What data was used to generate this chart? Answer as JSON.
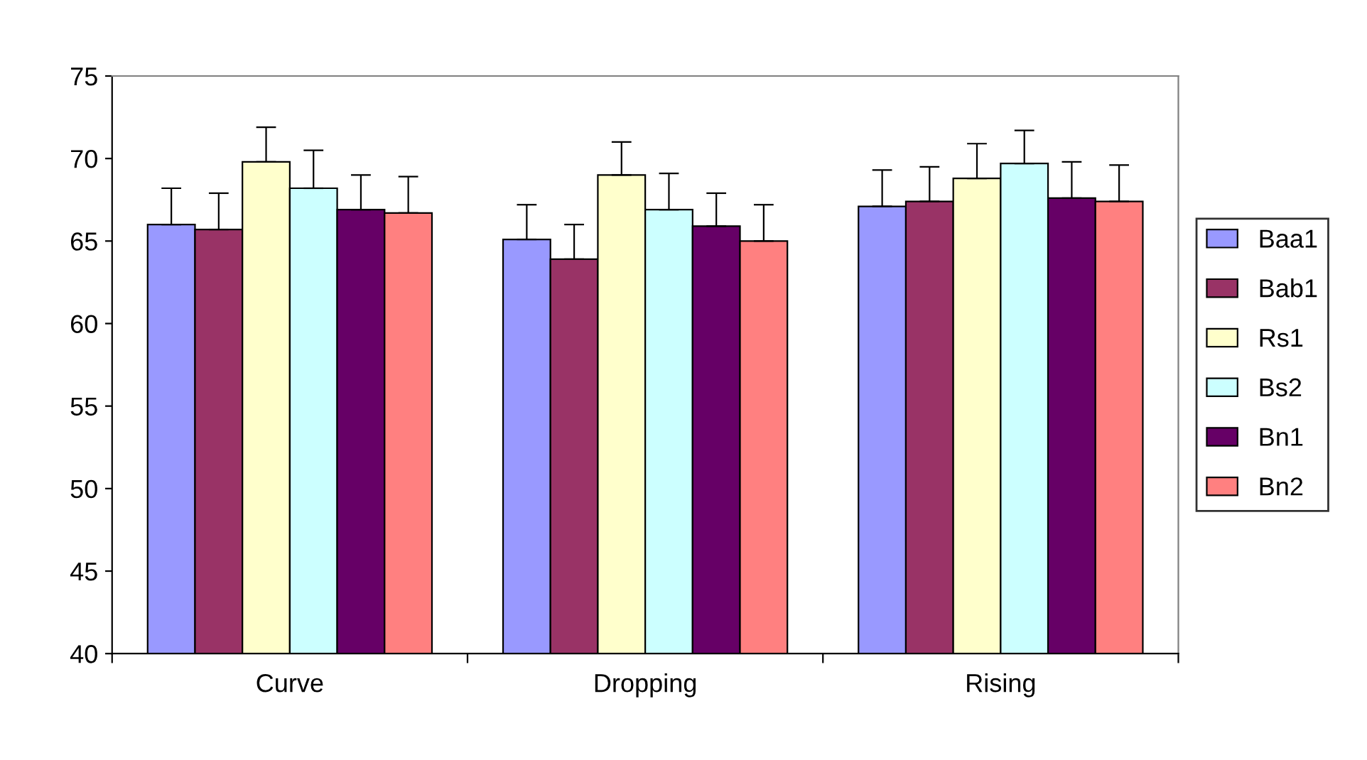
{
  "chart_data": {
    "type": "bar",
    "categories": [
      "Curve",
      "Dropping",
      "Rising"
    ],
    "series": [
      {
        "name": "Baa1",
        "color": "#9999ff",
        "values": [
          66.0,
          65.1,
          67.1
        ],
        "errors": [
          [
            66.0,
            68.2
          ],
          [
            65.1,
            67.2
          ],
          [
            67.1,
            69.3
          ]
        ]
      },
      {
        "name": "Bab1",
        "color": "#993366",
        "values": [
          65.7,
          63.9,
          67.4
        ],
        "errors": [
          [
            65.7,
            67.9
          ],
          [
            63.9,
            66.0
          ],
          [
            67.4,
            69.5
          ]
        ]
      },
      {
        "name": "Rs1",
        "color": "#ffffcc",
        "values": [
          69.8,
          69.0,
          68.8
        ],
        "errors": [
          [
            69.8,
            71.9
          ],
          [
            69.0,
            71.0
          ],
          [
            68.8,
            70.9
          ]
        ]
      },
      {
        "name": "Bs2",
        "color": "#ccffff",
        "values": [
          68.2,
          66.9,
          69.7
        ],
        "errors": [
          [
            68.2,
            70.5
          ],
          [
            66.9,
            69.1
          ],
          [
            69.7,
            71.7
          ]
        ]
      },
      {
        "name": "Bn1",
        "color": "#660066",
        "values": [
          66.9,
          65.9,
          67.6
        ],
        "errors": [
          [
            66.9,
            69.0
          ],
          [
            65.9,
            67.9
          ],
          [
            67.6,
            69.8
          ]
        ]
      },
      {
        "name": "Bn2",
        "color": "#ff8080",
        "values": [
          66.7,
          65.0,
          67.4
        ],
        "errors": [
          [
            66.7,
            68.9
          ],
          [
            65.0,
            67.2
          ],
          [
            67.4,
            69.6
          ]
        ]
      }
    ],
    "ylim": [
      40,
      75
    ],
    "yticks": [
      40,
      45,
      50,
      55,
      60,
      65,
      70,
      75
    ],
    "grid": false,
    "legend": "right"
  }
}
